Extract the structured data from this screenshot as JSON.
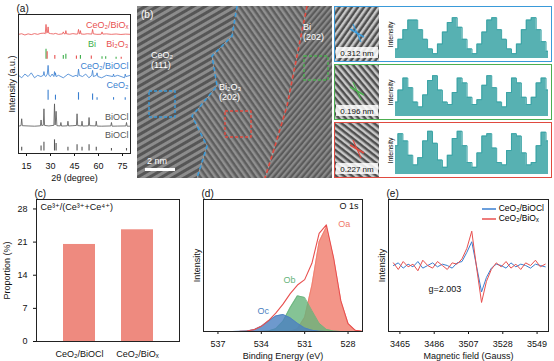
{
  "chart_data": [
    {
      "panel": "(a)",
      "type": "line",
      "xlabel": "2θ (degree)",
      "ylabel": "Intensity (a.u.)",
      "xlim": [
        10,
        80
      ],
      "xticks": [
        15,
        30,
        45,
        60,
        75
      ],
      "ylim": [
        0,
        112
      ],
      "tick_labels": "x",
      "series": [
        {
          "name": "CeO₂/BiOₓ",
          "type": "line",
          "color": "#e8504f",
          "x": [
            10,
            12,
            14,
            16,
            18,
            20,
            22,
            24,
            26,
            26.7,
            27.2,
            27.7,
            28.1,
            28.5,
            28.9,
            30,
            32,
            33,
            35,
            37.5,
            38,
            38.5,
            39.2,
            39.6,
            40,
            42,
            44,
            46,
            47,
            47.5,
            48,
            48.3,
            48.7,
            49.1,
            51,
            53,
            55.8,
            56.3,
            56.8,
            59,
            61.7,
            62.2,
            62.7,
            65,
            68,
            71,
            74,
            77,
            80
          ],
          "values": [
            96,
            96.5,
            95.5,
            96.4,
            95.8,
            96.6,
            96,
            96.8,
            97,
            96.5,
            104,
            97,
            97.5,
            102,
            97,
            96.6,
            96.3,
            96.8,
            96,
            96.4,
            98,
            96.5,
            96.3,
            99,
            96.4,
            96.1,
            96.6,
            96.2,
            96.3,
            100,
            96.5,
            96.4,
            99,
            96.3,
            96.1,
            96.5,
            96.2,
            100,
            96.4,
            96,
            96.1,
            98,
            96.2,
            96.4,
            96,
            96.3,
            95.9,
            96.2,
            96
          ]
        },
        {
          "name": "Bi",
          "type": "stick",
          "color": "#3cae4a",
          "base": 76,
          "x": [
            27.2,
            38.0,
            39.6,
            48.7,
            62.2,
            64.5,
            71.0
          ],
          "values": [
            84,
            79,
            80,
            79,
            78,
            78,
            77.5
          ]
        },
        {
          "name": "Bi₂O₃",
          "type": "stick",
          "color": "#e8504f",
          "base": 76,
          "x": [
            27.9,
            32.7,
            46.2,
            55.5,
            74.2
          ],
          "values": [
            82,
            79,
            78.5,
            78.5,
            77.5
          ]
        },
        {
          "name": "CeO₂/BiOCl",
          "type": "line",
          "color": "#3a7fd0",
          "x": [
            10,
            12,
            14,
            16,
            18,
            20,
            22,
            24,
            25.5,
            25.9,
            26.3,
            27,
            28,
            28.5,
            29,
            30,
            31,
            32.1,
            32.5,
            32.9,
            33.1,
            33.5,
            35,
            38,
            41,
            44,
            46,
            47,
            47.5,
            48,
            50,
            52,
            54,
            55.8,
            56.3,
            56.8,
            58.7,
            59.1,
            59.6,
            62,
            65,
            69,
            69.4,
            69.8,
            72,
            76.3,
            76.7,
            77.1,
            80
          ],
          "values": [
            63,
            61,
            64,
            62,
            65,
            61,
            63,
            62,
            63,
            66,
            63,
            62,
            64,
            71,
            63,
            62,
            64,
            62,
            66,
            63,
            65,
            62,
            63,
            61,
            64,
            62,
            63,
            62,
            68,
            63,
            62,
            64,
            61,
            63,
            67,
            62,
            63,
            65,
            62,
            61,
            63,
            62,
            64,
            62,
            63,
            61,
            64,
            62,
            63
          ]
        },
        {
          "name": "CeO₂",
          "type": "stick",
          "color": "#3a7fd0",
          "base": 43,
          "x": [
            28.5,
            33.1,
            47.5,
            56.3,
            59.1,
            69.4,
            76.7
          ],
          "values": [
            51,
            47,
            49,
            48,
            45,
            45,
            45
          ]
        },
        {
          "name": "BiOCl",
          "type": "line",
          "color": "#555555",
          "x": [
            10,
            11.6,
            12.0,
            12.4,
            16,
            20,
            23.7,
            24.1,
            24.5,
            25.5,
            25.9,
            26.3,
            29,
            32.1,
            32.5,
            32.9,
            33.5,
            34,
            36.1,
            36.5,
            36.9,
            40.5,
            40.9,
            41.3,
            44,
            46.2,
            46.6,
            47,
            49.3,
            49.7,
            50.1,
            53.7,
            54.1,
            54.5,
            58.2,
            58.6,
            59,
            62,
            67.7,
            68.1,
            68.5,
            72,
            77.1,
            77.5,
            77.9,
            80
          ],
          "values": [
            22,
            22.5,
            28,
            22.4,
            22.2,
            22,
            22.3,
            27,
            22.5,
            22.8,
            36,
            22.6,
            22.2,
            22.7,
            40,
            23,
            34,
            22.4,
            22.2,
            25,
            22.1,
            22.3,
            26,
            22.2,
            22.4,
            22.6,
            32,
            22.5,
            22.2,
            26,
            22.1,
            22.3,
            29,
            22.4,
            22.2,
            26,
            22.1,
            22,
            22.2,
            25,
            22,
            22.1,
            22.2,
            25,
            22,
            22
          ]
        },
        {
          "name": "BiOCl",
          "type": "stick",
          "color": "#555555",
          "base": 2,
          "x": [
            12.0,
            24.1,
            25.9,
            32.5,
            33.5,
            40.9,
            46.6,
            49.7,
            54.1,
            58.6,
            68.1,
            77.5
          ],
          "values": [
            5,
            6,
            9,
            11,
            8,
            5,
            7,
            5,
            7,
            5,
            4,
            4
          ]
        }
      ]
    },
    {
      "panel": "(b)",
      "type": "image",
      "scale_bar": "2 nm",
      "annotations": [
        {
          "text": [
            "CeO₂",
            "(111)"
          ],
          "color": "#3a9ad9"
        },
        {
          "text": [
            "Bi₂O₃",
            "(202)"
          ],
          "color": "#e04a3f"
        },
        {
          "text": [
            "Bi",
            "(202)"
          ],
          "color": "#4caf50"
        }
      ],
      "profiles": [
        {
          "type": "line",
          "line_style": "step",
          "ylabel": "Intensity",
          "annotation": "0.312 nm",
          "color": "#3a9ad9",
          "ylim": [
            0,
            100
          ],
          "tick_labels": false,
          "series": [
            {
              "color": "#3aa3a5",
              "values": [
                20,
                40,
                60,
                80,
                80,
                60,
                40,
                20,
                10,
                30,
                55,
                75,
                85,
                65,
                40,
                20,
                10,
                30,
                55,
                80,
                85,
                60,
                40,
                20,
                10,
                30,
                60,
                80,
                85,
                60,
                35,
                15
              ]
            }
          ]
        },
        {
          "type": "line",
          "line_style": "step",
          "ylabel": "Intensity",
          "annotation": "0.196 nm",
          "color": "#4caf50",
          "ylim": [
            0,
            100
          ],
          "tick_labels": false,
          "series": [
            {
              "color": "#3aa3a5",
              "values": [
                30,
                55,
                80,
                60,
                30,
                20,
                45,
                75,
                85,
                55,
                30,
                25,
                50,
                80,
                70,
                40,
                25,
                35,
                65,
                85,
                60,
                30,
                20,
                50,
                80,
                70,
                40,
                25,
                40,
                70,
                80,
                55
              ]
            }
          ]
        },
        {
          "type": "line",
          "line_style": "step",
          "ylabel": "Intensity",
          "annotation": "0.227 nm",
          "color": "#e04a3f",
          "ylim": [
            0,
            100
          ],
          "tick_labels": false,
          "series": [
            {
              "color": "#3aa3a5",
              "values": [
                60,
                85,
                70,
                40,
                20,
                35,
                70,
                90,
                65,
                30,
                15,
                40,
                75,
                90,
                60,
                25,
                15,
                45,
                80,
                85,
                55,
                25,
                20,
                50,
                85,
                80,
                45,
                20,
                25,
                60,
                88,
                70
              ]
            }
          ]
        }
      ]
    },
    {
      "panel": "(c)",
      "type": "bar",
      "ylabel": "Proportion (%)",
      "annotation": "Ce³⁺/(Ce³⁺+Ce⁴⁺)",
      "categories": [
        "CeO₂/BiOCl",
        "CeO₂/BiOₓ"
      ],
      "values": [
        20.5,
        23.6
      ],
      "color": "#ee8a7f",
      "ylim": [
        0,
        30
      ],
      "yticks": [
        0,
        7,
        14,
        21,
        28
      ]
    },
    {
      "panel": "(d)",
      "type": "area",
      "title": "O 1s",
      "xlabel": "Binding Energy (eV)",
      "ylabel": "Intensity",
      "xlim": [
        538,
        527
      ],
      "xticks": [
        537,
        534,
        531,
        528
      ],
      "ylim": [
        0,
        100
      ],
      "tick_labels": "x",
      "x": [
        537,
        536.5,
        536,
        535.5,
        535,
        534.5,
        534,
        533.5,
        533,
        532.5,
        532,
        531.5,
        531,
        530.5,
        530,
        529.5,
        529,
        528.5,
        528,
        527.5,
        527
      ],
      "series": [
        {
          "name": "Oa",
          "type": "area",
          "color": "#f07a6a",
          "values": [
            0,
            0,
            0,
            0,
            0,
            0,
            0,
            0,
            0,
            0,
            0.2,
            2.0,
            10.8,
            35,
            68,
            79.2,
            55.4,
            23.2,
            5.9,
            0.9,
            0
          ]
        },
        {
          "name": "Ob",
          "type": "area",
          "color": "#66b47a",
          "values": [
            0,
            0,
            0,
            0,
            0,
            0,
            0,
            0.4,
            2.1,
            7.8,
            18.1,
            27.0,
            25.8,
            15.8,
            6.2,
            1.6,
            0.3,
            0,
            0,
            0,
            0
          ]
        },
        {
          "name": "Oc",
          "type": "area",
          "color": "#4a7fc1",
          "values": [
            0,
            0,
            0,
            0.1,
            0.4,
            1.4,
            3.9,
            7.9,
            11.8,
            12.9,
            10.4,
            6.2,
            2.7,
            0.9,
            0.2,
            0,
            0,
            0,
            0,
            0,
            0
          ]
        },
        {
          "type": "line",
          "color": "#e8504f",
          "values": [
            0,
            0,
            0,
            0.1,
            0.4,
            1.4,
            3.9,
            8.3,
            13.9,
            20.7,
            28.7,
            35.2,
            39.3,
            51.7,
            74.4,
            80.8,
            55.7,
            23.2,
            5.9,
            0.9,
            0
          ]
        }
      ]
    },
    {
      "panel": "(e)",
      "type": "line",
      "xlabel": "Magnetic field (Gauss)",
      "ylabel": "Intensity",
      "annotation": "g=2.003",
      "xlim": [
        3458,
        3556
      ],
      "xticks": [
        3465,
        3486,
        3507,
        3528,
        3549
      ],
      "ylim": [
        0,
        100
      ],
      "tick_labels": "x",
      "legend": "upper right",
      "x": [
        3461,
        3464,
        3467,
        3470,
        3473,
        3476,
        3479,
        3482,
        3485,
        3488,
        3491,
        3494,
        3497,
        3500,
        3503,
        3506,
        3509,
        3512,
        3515,
        3518,
        3521,
        3524,
        3527,
        3530,
        3533,
        3536,
        3539,
        3542,
        3545,
        3548,
        3551,
        3554
      ],
      "series": [
        {
          "name": "CeO₂/BiOCl",
          "color": "#3a7fd0",
          "values": [
            50,
            52,
            48,
            51,
            49,
            53,
            48,
            50,
            52,
            49,
            51,
            50,
            48,
            52,
            53,
            60,
            68,
            49,
            30,
            41,
            48,
            51,
            50,
            48,
            52,
            49,
            51,
            50,
            48,
            51,
            50,
            49
          ]
        },
        {
          "name": "CeO₂/BiOₓ",
          "color": "#e8504f",
          "values": [
            52,
            47,
            53,
            49,
            51,
            46,
            54,
            50,
            48,
            53,
            50,
            47,
            52,
            51,
            55,
            63,
            76,
            48,
            22,
            38,
            47,
            52,
            49,
            53,
            48,
            51,
            47,
            52,
            50,
            54,
            49,
            51
          ]
        }
      ]
    }
  ]
}
